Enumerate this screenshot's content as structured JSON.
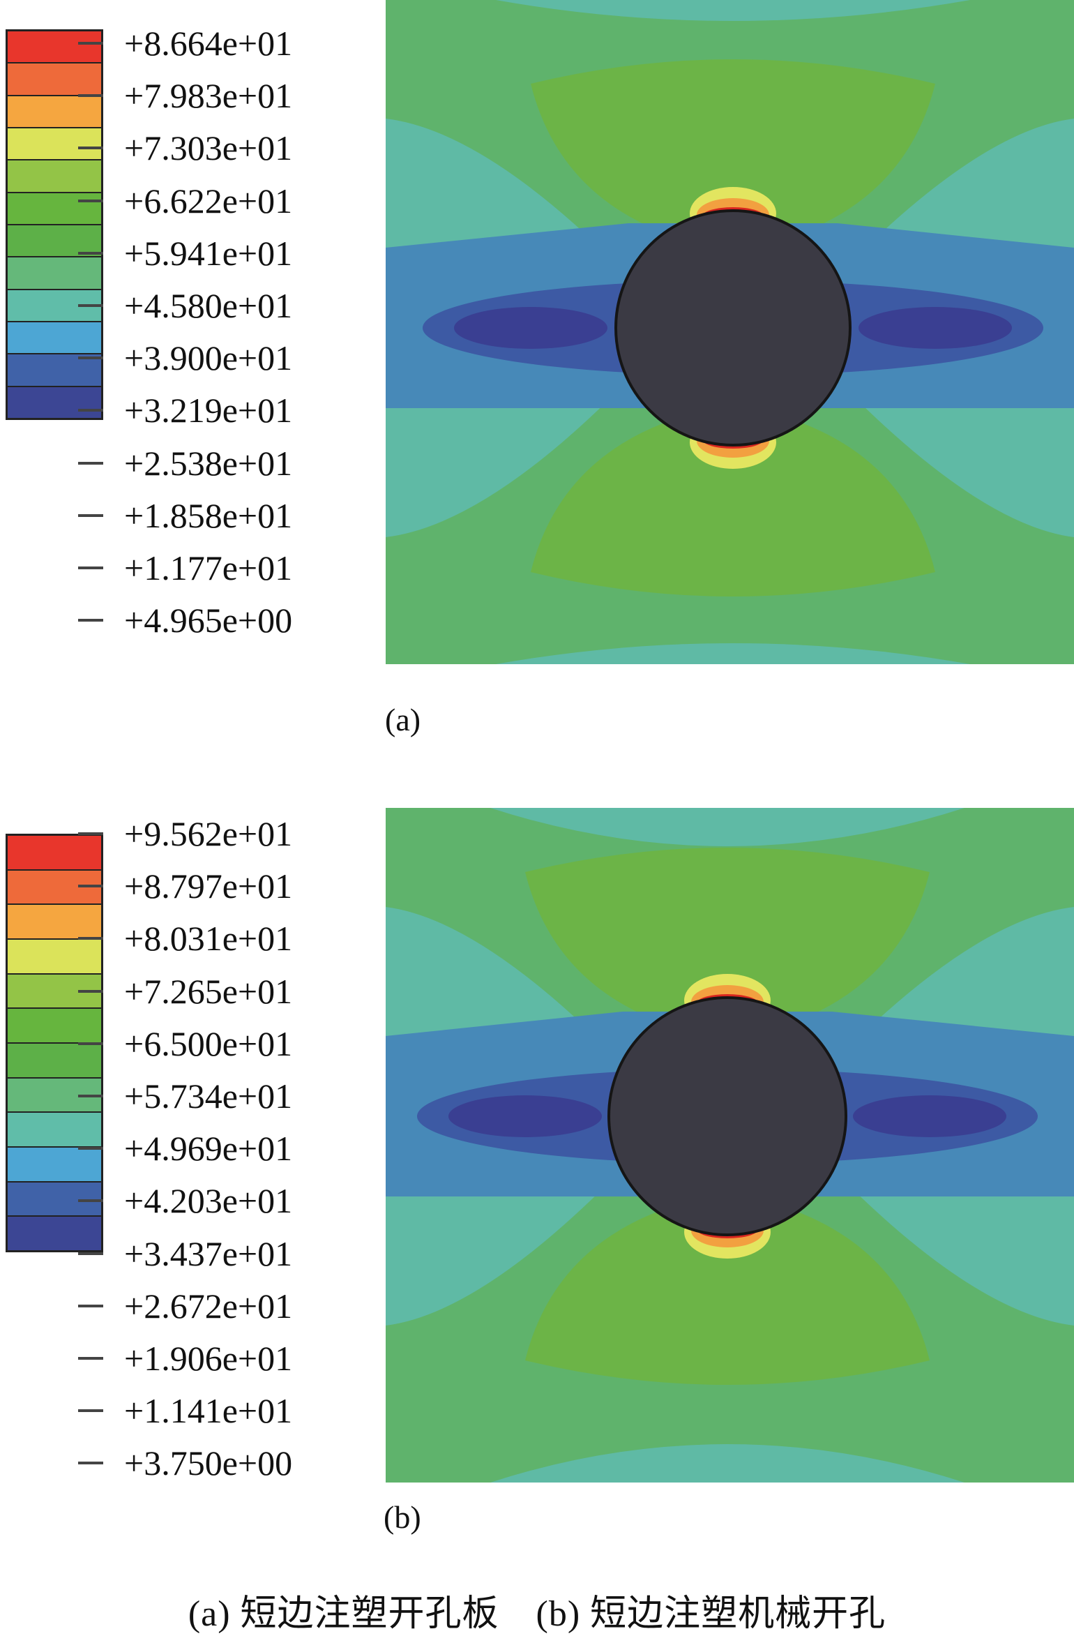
{
  "panel_a": {
    "label": "(a)",
    "legend_values": [
      "+8.664e+01",
      "+7.983e+01",
      "+7.303e+01",
      "+6.622e+01",
      "+5.941e+01",
      "+4.580e+01",
      "+3.900e+01",
      "+3.219e+01",
      "+2.538e+01",
      "+1.858e+01",
      "+1.177e+01",
      "+4.965e+00"
    ],
    "legend_colors": [
      "#e8362c",
      "#ee6a3a",
      "#f5a640",
      "#dbe35a",
      "#93c447",
      "#66b53e",
      "#5db048",
      "#65b87a",
      "#60bda9",
      "#4da6d4",
      "#4062a8",
      "#3c4694"
    ]
  },
  "panel_b": {
    "label": "(b)",
    "legend_values": [
      "+9.562e+01",
      "+8.797e+01",
      "+8.031e+01",
      "+7.265e+01",
      "+6.500e+01",
      "+5.734e+01",
      "+4.969e+01",
      "+4.203e+01",
      "+3.437e+01",
      "+2.672e+01",
      "+1.906e+01",
      "+1.141e+01",
      "+3.750e+00"
    ],
    "legend_colors": [
      "#e8362c",
      "#ee6a3a",
      "#f5a640",
      "#dbe35a",
      "#93c447",
      "#66b53e",
      "#5db048",
      "#65b87a",
      "#60bda9",
      "#4da6d4",
      "#4062a8",
      "#3c4694"
    ]
  },
  "field_colors": {
    "green": "#5fb36c",
    "bright_green": "#6cb447",
    "teal": "#5fbaa5",
    "blue": "#4789b8",
    "mid_blue": "#3d5aa4",
    "dark_blue": "#3a3f92",
    "hole": "#3b3a44",
    "orange": "#f2a040",
    "red": "#d8261f",
    "yellow": "#e2e560"
  },
  "caption": "(a) 短边注塑开孔板　(b) 短边注塑机械开孔"
}
